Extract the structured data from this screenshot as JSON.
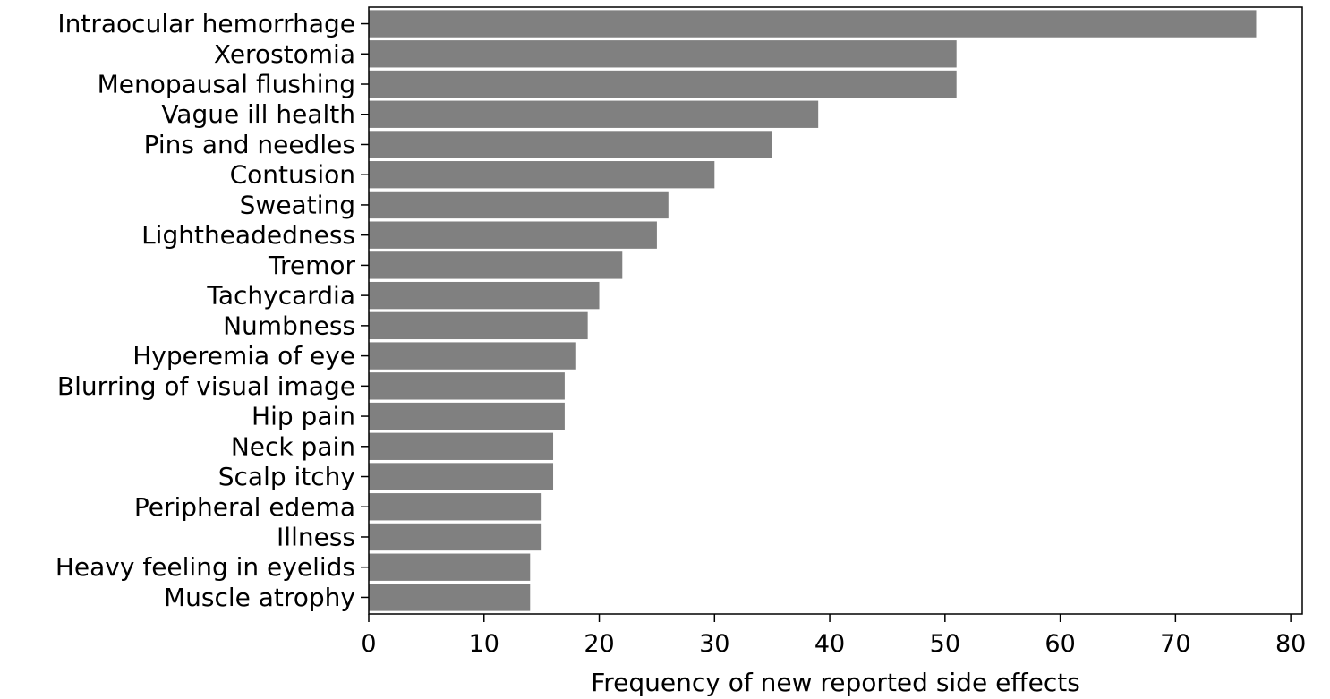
{
  "chart_data": {
    "type": "bar",
    "orientation": "horizontal",
    "title": "",
    "xlabel": "Frequency of new reported side effects",
    "ylabel": "",
    "xlim": [
      0,
      81
    ],
    "xticks": [
      0,
      10,
      20,
      30,
      40,
      50,
      60,
      70,
      80
    ],
    "grid": false,
    "bar_color": "#808080",
    "categories": [
      "Intraocular hemorrhage",
      "Xerostomia",
      "Menopausal flushing",
      "Vague ill health",
      "Pins and needles",
      "Contusion",
      "Sweating",
      "Lightheadedness",
      "Tremor",
      "Tachycardia",
      "Numbness",
      "Hyperemia of eye",
      "Blurring of visual image",
      "Hip pain",
      "Neck pain",
      "Scalp itchy",
      "Peripheral edema",
      "Illness",
      "Heavy feeling in eyelids",
      "Muscle atrophy"
    ],
    "values": [
      77,
      51,
      51,
      39,
      35,
      30,
      26,
      25,
      22,
      20,
      19,
      18,
      17,
      17,
      16,
      16,
      15,
      15,
      14,
      14
    ]
  }
}
